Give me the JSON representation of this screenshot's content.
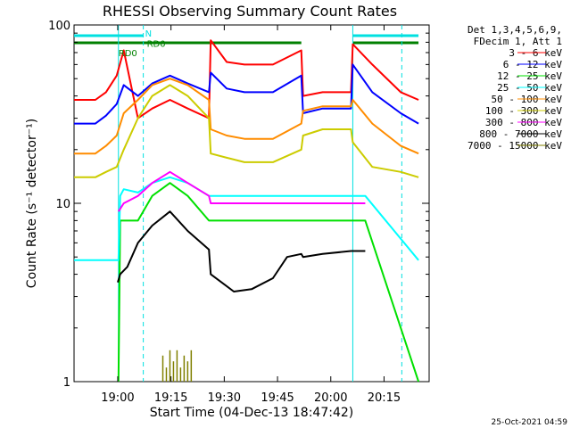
{
  "chart_data": {
    "type": "line",
    "title": "RHESSI Observing Summary Count Rates",
    "xlabel": "Start Time (04-Dec-13 18:47:42)",
    "ylabel": "Count Rate (s⁻¹ detector⁻¹)",
    "yscale": "log",
    "ylim": [
      1,
      100
    ],
    "xlim_minutes": [
      0,
      100
    ],
    "x_ticks": [
      {
        "t": 12.3,
        "label": "19:00"
      },
      {
        "t": 27.3,
        "label": "19:15"
      },
      {
        "t": 42.3,
        "label": "19:30"
      },
      {
        "t": 57.3,
        "label": "19:45"
      },
      {
        "t": 72.3,
        "label": "20:00"
      },
      {
        "t": 87.3,
        "label": "20:15"
      }
    ],
    "y_ticks": [
      {
        "v": 1,
        "label": "1"
      },
      {
        "v": 10,
        "label": "10"
      },
      {
        "v": 100,
        "label": "100"
      }
    ],
    "legend_header": [
      "Det 1,3,4,5,6,9,",
      "FDecim 1, Att 1"
    ],
    "legend_position": "right",
    "series": [
      {
        "name": "3 - 6 keV",
        "color": "#ff0000",
        "x": [
          0,
          6,
          9,
          12,
          14,
          18,
          22,
          27,
          32,
          38,
          38.5,
          43,
          48,
          56,
          64,
          64.5,
          70,
          78,
          78.5,
          84,
          92,
          97
        ],
        "y": [
          38,
          38,
          42,
          52,
          72,
          30,
          34,
          38,
          34,
          30,
          82,
          62,
          60,
          60,
          72,
          40,
          42,
          42,
          78,
          60,
          42,
          38
        ]
      },
      {
        "name": "6 - 12 keV",
        "color": "#0000ff",
        "x": [
          0,
          6,
          9,
          12,
          14,
          18,
          22,
          27,
          32,
          38,
          38.5,
          43,
          48,
          56,
          64,
          64.5,
          70,
          78,
          78.5,
          84,
          92,
          97
        ],
        "y": [
          28,
          28,
          31,
          36,
          46,
          40,
          47,
          52,
          47,
          42,
          54,
          44,
          42,
          42,
          52,
          32,
          34,
          34,
          60,
          42,
          32,
          28
        ]
      },
      {
        "name": "12 - 25 keV",
        "color": "#00e000",
        "x": [
          12.5,
          13,
          14,
          18,
          22,
          27,
          32,
          38,
          38.5,
          50,
          64,
          64.5,
          72,
          78,
          78.5,
          80,
          81,
          82,
          97
        ],
        "y": [
          1,
          8,
          8,
          8,
          11,
          13,
          11,
          8,
          8,
          8,
          8,
          8,
          8,
          8,
          8,
          8,
          8,
          8,
          1
        ]
      },
      {
        "name": "25 - 50 keV",
        "color": "#00ffff",
        "x": [
          0,
          12.5,
          13,
          14,
          18,
          22,
          27,
          32,
          38,
          38.5,
          50,
          64,
          64.5,
          72,
          78,
          78.5,
          80,
          81,
          82,
          97
        ],
        "y": [
          4.8,
          4.8,
          11,
          12,
          11.5,
          13,
          14,
          13,
          11,
          11,
          11,
          11,
          11,
          11,
          11,
          11,
          11,
          11,
          11,
          4.8
        ]
      },
      {
        "name": "50 - 100 keV",
        "color": "#ff8c00",
        "x": [
          0,
          6,
          9,
          12,
          14,
          18,
          22,
          27,
          32,
          38,
          38.5,
          43,
          48,
          56,
          64,
          64.5,
          70,
          78,
          78.5,
          84,
          92,
          97
        ],
        "y": [
          19,
          19,
          21,
          24,
          32,
          38,
          46,
          50,
          46,
          38,
          26,
          24,
          23,
          23,
          28,
          33,
          35,
          35,
          38,
          28,
          21,
          19
        ]
      },
      {
        "name": "100 - 300 keV",
        "color": "#cccc00",
        "x": [
          0,
          6,
          9,
          12,
          14,
          18,
          22,
          27,
          32,
          38,
          38.5,
          43,
          48,
          56,
          64,
          64.5,
          70,
          78,
          78.5,
          84,
          92,
          97
        ],
        "y": [
          14,
          14,
          15,
          16,
          20,
          30,
          40,
          46,
          40,
          30,
          19,
          18,
          17,
          17,
          20,
          24,
          26,
          26,
          22,
          16,
          15,
          14
        ]
      },
      {
        "name": "300 - 800 keV",
        "color": "#ff00ff",
        "x": [
          12.5,
          14,
          18,
          22,
          27,
          32,
          38,
          38.5,
          50,
          64,
          64.5,
          72,
          78,
          78.5,
          82
        ],
        "y": [
          9,
          10,
          11,
          13,
          15,
          13,
          11,
          10,
          10,
          10,
          10,
          10,
          10,
          10,
          10
        ]
      },
      {
        "name": "800 - 7000 keV",
        "color": "#000000",
        "x": [
          12.3,
          13,
          15,
          18,
          22,
          27,
          32,
          38,
          38.5,
          45,
          50,
          56,
          60,
          64,
          64.5,
          70,
          78,
          78.5,
          82
        ],
        "y": [
          3.6,
          4,
          4.4,
          6,
          7.5,
          9,
          7,
          5.5,
          4,
          3.2,
          3.3,
          3.8,
          5,
          5.2,
          5,
          5.2,
          5.4,
          5.4,
          5.4
        ]
      },
      {
        "name": "7000 - 15000 keV",
        "color": "#808000",
        "x": [
          25,
          26,
          27,
          28,
          29,
          30,
          31,
          32,
          33
        ],
        "y": [
          1.4,
          1.2,
          1.5,
          1.3,
          1.5,
          1.2,
          1.4,
          1.3,
          1.5
        ]
      }
    ],
    "annotations": [
      {
        "text": "N",
        "color": "#00e0e0",
        "t": 19.5,
        "v": 90
      },
      {
        "text": "RD0",
        "color": "#008000",
        "t": 20,
        "v": 79
      },
      {
        "text": "RD0",
        "color": "#008000",
        "t": 12,
        "v": 70
      }
    ],
    "flags": [
      {
        "name": "night",
        "color": "#00e0e0",
        "segments": [
          [
            0,
            19.5
          ],
          [
            78.5,
            97
          ]
        ]
      },
      {
        "name": "rd0",
        "color": "#008000",
        "segments": [
          [
            0,
            19.5
          ],
          [
            19.5,
            64
          ],
          [
            78.5,
            97
          ]
        ]
      }
    ],
    "vlines": [
      {
        "t": 12.5,
        "color": "#00e0e0",
        "dash": false
      },
      {
        "t": 19.5,
        "color": "#00e0e0",
        "dash": true
      },
      {
        "t": 78.5,
        "color": "#00e0e0",
        "dash": false
      },
      {
        "t": 92.3,
        "color": "#00e0e0",
        "dash": true
      }
    ]
  },
  "footer": {
    "stamp": "25-Oct-2021 04:59"
  }
}
